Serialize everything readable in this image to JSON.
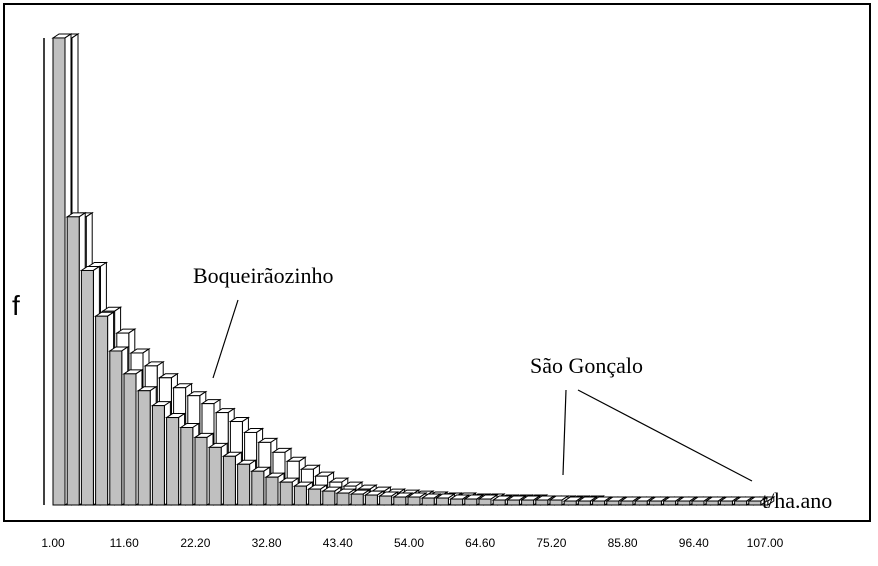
{
  "chart_data": {
    "type": "bar",
    "ylabel": "f",
    "xlabel": "t/ha.ano",
    "x_tick_labels": [
      "1.00",
      "11.60",
      "22.20",
      "32.80",
      "43.40",
      "54.00",
      "64.60",
      "75.20",
      "85.80",
      "96.40",
      "107.00"
    ],
    "series": [
      {
        "name": "Boqueirãozinho",
        "values": [
          470,
          290,
          240,
          195,
          173,
          153,
          140,
          128,
          118,
          110,
          102,
          93,
          84,
          73,
          63,
          53,
          44,
          36,
          29,
          23,
          19,
          16,
          14,
          12,
          11,
          10,
          9,
          8,
          8,
          7,
          7,
          6,
          6,
          6,
          5,
          5,
          5,
          5,
          4,
          4,
          4,
          4,
          4,
          4,
          4,
          4,
          4,
          4,
          4,
          4
        ]
      },
      {
        "name": "São Gonçalo",
        "values": [
          470,
          290,
          236,
          190,
          155,
          132,
          115,
          100,
          88,
          78,
          68,
          58,
          49,
          41,
          34,
          28,
          23,
          19,
          16,
          14,
          12,
          11,
          10,
          9,
          8,
          8,
          7,
          7,
          6,
          6,
          6,
          5,
          5,
          5,
          5,
          5,
          4,
          4,
          4,
          4,
          4,
          4,
          4,
          4,
          4,
          4,
          4,
          4,
          4,
          4
        ]
      }
    ],
    "ylim": [
      0,
      480
    ],
    "grid": false,
    "legend": "none",
    "annotations": [
      {
        "text": "Boqueirãozinho",
        "points_to_series": "Boqueirãozinho"
      },
      {
        "text": "São Gonçalo",
        "points_to_series": "São Gonçalo"
      }
    ],
    "colors": {
      "front_bar": "#c0c0c0",
      "back_bar": "#ffffff",
      "outline": "#000000"
    }
  }
}
